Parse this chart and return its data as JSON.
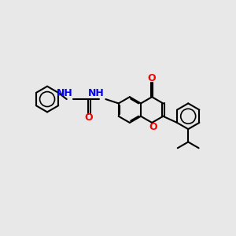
{
  "background_color": "#e8e8e8",
  "bond_color": "#000000",
  "atom_colors": {
    "O": "#ff0000",
    "N": "#0000ff",
    "C": "#000000"
  },
  "bond_lw": 1.5,
  "dbo": 0.06,
  "r_ring": 0.55,
  "font_size": 9
}
